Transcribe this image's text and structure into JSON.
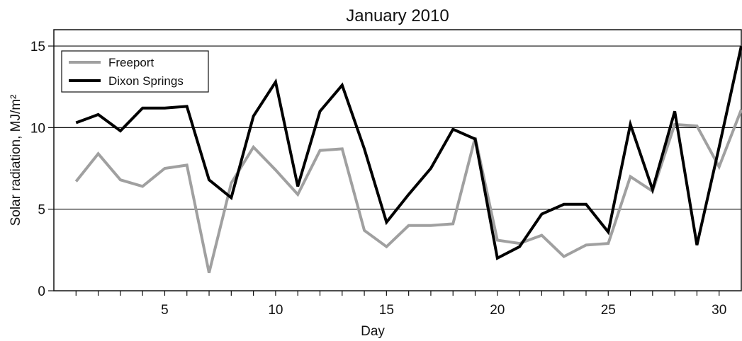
{
  "chart_data": {
    "type": "line",
    "title": "January 2010",
    "xlabel": "Day",
    "ylabel": "Solar radiation, MJ/m²",
    "xlim": [
      0,
      31
    ],
    "ylim": [
      0,
      16
    ],
    "xticks": [
      5,
      10,
      15,
      20,
      25,
      30
    ],
    "yticks": [
      0,
      5,
      10,
      15
    ],
    "grid_y": true,
    "grid_x": false,
    "legend_position": "top-left",
    "x": [
      1,
      2,
      3,
      4,
      5,
      6,
      7,
      8,
      9,
      10,
      11,
      12,
      13,
      14,
      15,
      16,
      17,
      18,
      19,
      20,
      21,
      22,
      23,
      24,
      25,
      26,
      27,
      28,
      29,
      30,
      31
    ],
    "series": [
      {
        "name": "Freeport",
        "color": "#a0a0a0",
        "values": [
          6.7,
          8.4,
          6.8,
          6.4,
          7.5,
          7.7,
          1.1,
          6.6,
          8.8,
          7.4,
          5.9,
          8.6,
          8.7,
          3.7,
          2.7,
          4.0,
          4.0,
          4.1,
          9.4,
          3.1,
          2.9,
          3.4,
          2.1,
          2.8,
          2.9,
          7.0,
          6.1,
          10.2,
          10.1,
          7.6,
          11.1
        ]
      },
      {
        "name": "Dixon Springs",
        "color": "#000000",
        "values": [
          10.3,
          10.8,
          9.8,
          11.2,
          11.2,
          11.3,
          6.8,
          5.7,
          10.7,
          12.8,
          6.4,
          11.0,
          12.6,
          8.7,
          4.2,
          5.9,
          7.5,
          9.9,
          9.3,
          2.0,
          2.7,
          4.7,
          5.3,
          5.3,
          3.6,
          10.2,
          6.2,
          11.0,
          2.8,
          8.8,
          15.0
        ]
      }
    ]
  }
}
